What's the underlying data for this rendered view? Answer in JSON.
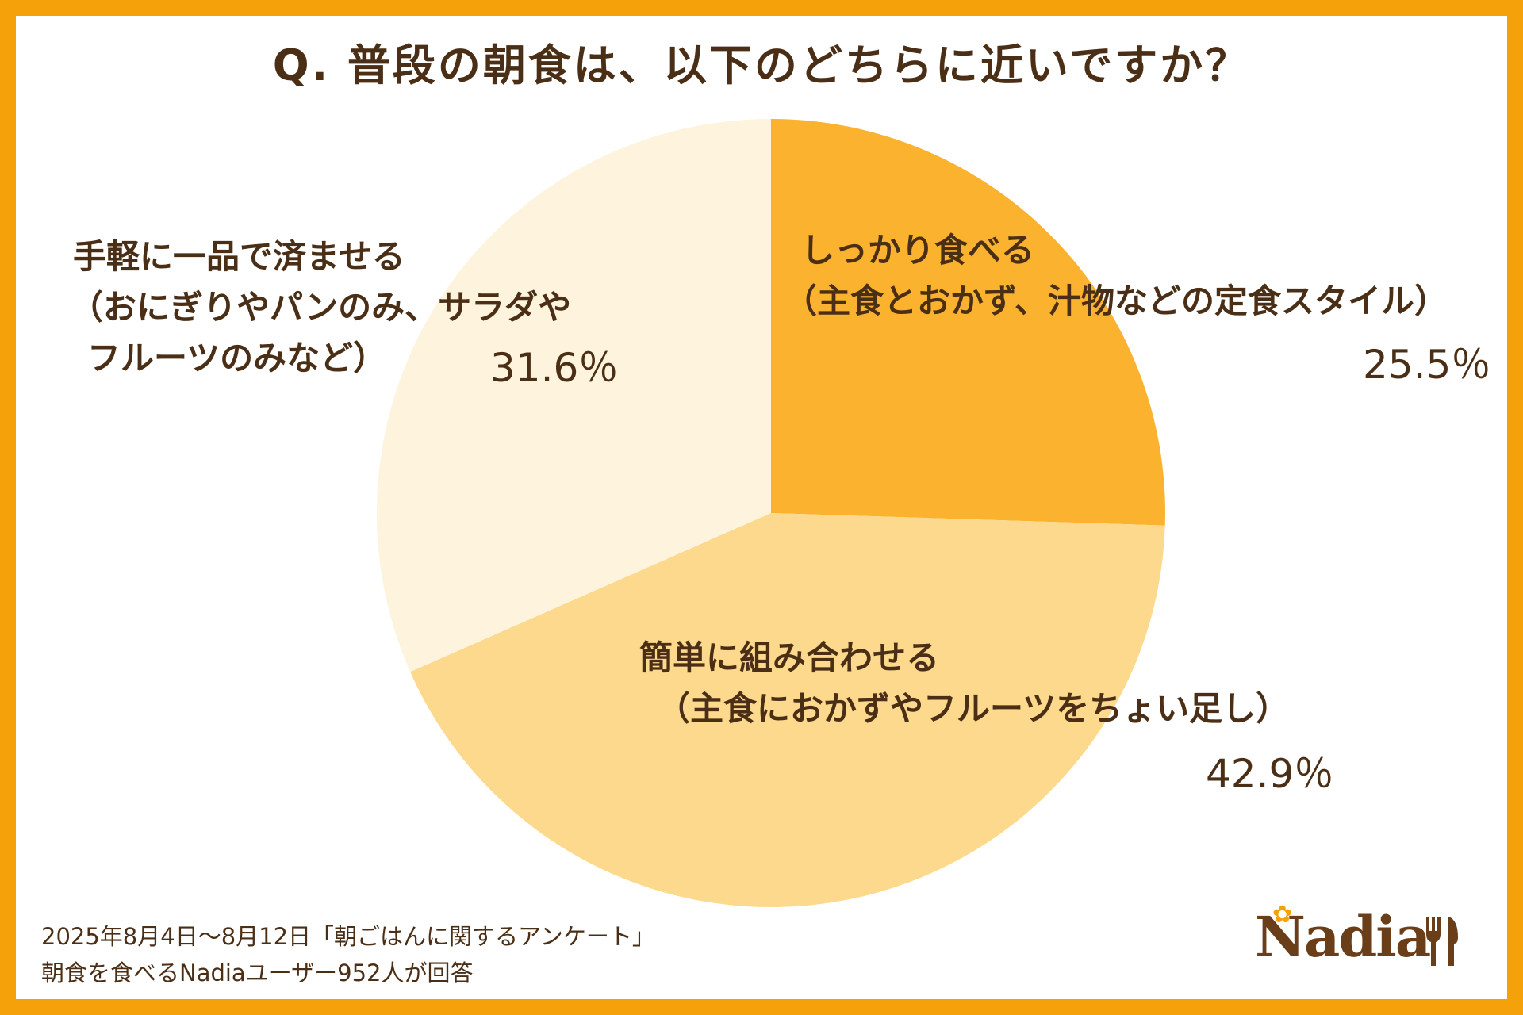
{
  "chart_data": {
    "type": "pie",
    "title": "Q. 普段の朝食は、以下のどちらに近いですか？",
    "slices": [
      {
        "label_lines": [
          "しっかり食べる",
          "（主食とおかず、汁物などの定食スタイル）"
        ],
        "value": 25.5,
        "value_label": "25.5％",
        "color": "#FBB32F"
      },
      {
        "label_lines": [
          "簡単に組み合わせる",
          "（主食におかずやフルーツをちょい足し）"
        ],
        "value": 42.9,
        "value_label": "42.9％",
        "color": "#FDD98E"
      },
      {
        "label_lines": [
          "手軽に一品で済ませる",
          "（おにぎりやパンのみ、サラダや",
          "フルーツのみなど）"
        ],
        "value": 31.6,
        "value_label": "31.6％",
        "color": "#FEF3DC"
      }
    ],
    "start_angle": "12 o'clock",
    "direction": "clockwise",
    "legend": "none"
  },
  "source": {
    "line1": "2025年8月4日〜8月12日「朝ごはんに関するアンケート」",
    "line2": "朝食を食べるNadiaユーザー952人が回答"
  },
  "logo": {
    "text": "Nadia",
    "icon": "cutlery-icon",
    "accent_icon": "flower-icon"
  },
  "colors": {
    "border": "#F5A20A",
    "text": "#4A2F16",
    "logo": "#6B3E1A"
  }
}
